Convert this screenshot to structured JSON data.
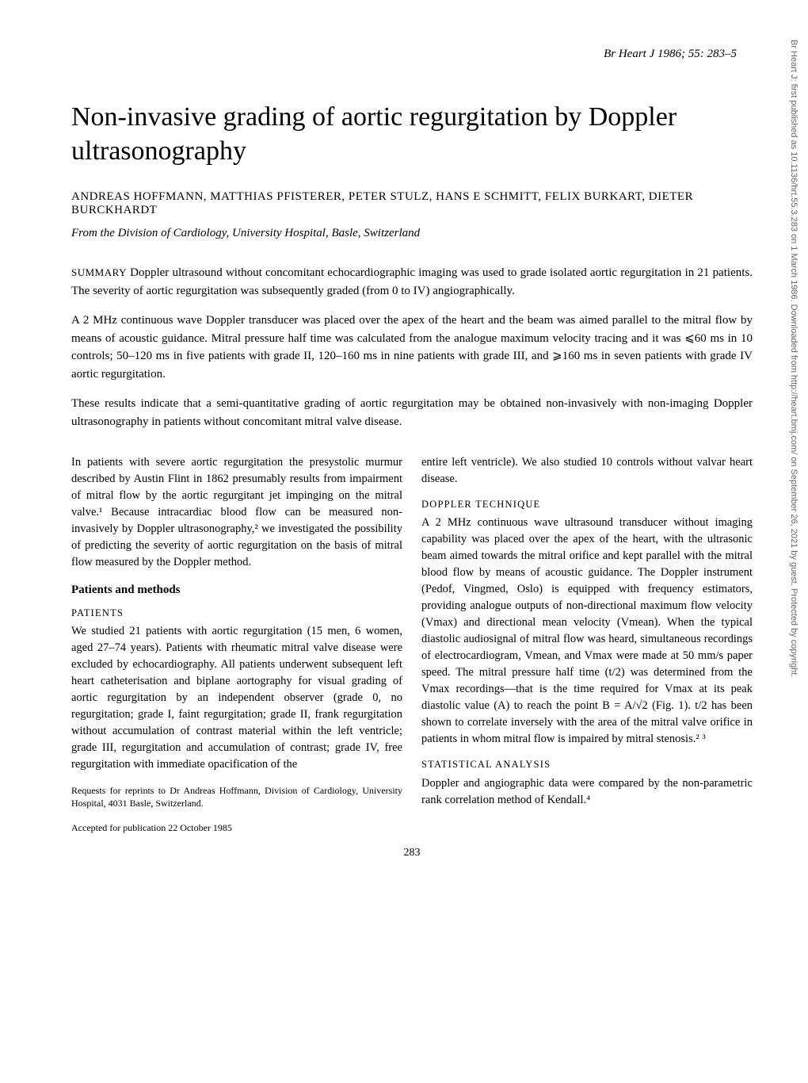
{
  "journal_ref": "Br Heart J 1986; 55: 283–5",
  "title": "Non-invasive grading of aortic regurgitation by Doppler ultrasonography",
  "authors": "ANDREAS HOFFMANN, MATTHIAS PFISTERER, PETER STULZ, HANS E SCHMITT, FELIX BURKART, DIETER BURCKHARDT",
  "affiliation": "From the Division of Cardiology, University Hospital, Basle, Switzerland",
  "summary_label": "SUMMARY",
  "summary_p1": "Doppler ultrasound without concomitant echocardiographic imaging was used to grade isolated aortic regurgitation in 21 patients. The severity of aortic regurgitation was subsequently graded (from 0 to IV) angiographically.",
  "summary_p2": "A 2 MHz continuous wave Doppler transducer was placed over the apex of the heart and the beam was aimed parallel to the mitral flow by means of acoustic guidance. Mitral pressure half time was calculated from the analogue maximum velocity tracing and it was ⩽60 ms in 10 controls; 50–120 ms in five patients with grade II, 120–160 ms in nine patients with grade III, and ⩾160 ms in seven patients with grade IV aortic regurgitation.",
  "summary_p3": "These results indicate that a semi-quantitative grading of aortic regurgitation may be obtained non-invasively with non-imaging Doppler ultrasonography in patients without concomitant mitral valve disease.",
  "intro": "In patients with severe aortic regurgitation the presystolic murmur described by Austin Flint in 1862 presumably results from impairment of mitral flow by the aortic regurgitant jet impinging on the mitral valve.¹ Because intracardiac blood flow can be measured non-invasively by Doppler ultrasonography,² we investigated the possibility of predicting the severity of aortic regurgitation on the basis of mitral flow measured by the Doppler method.",
  "heading_methods": "Patients and methods",
  "sub_patients": "PATIENTS",
  "patients_text": "We studied 21 patients with aortic regurgitation (15 men, 6 women, aged 27–74 years). Patients with rheumatic mitral valve disease were excluded by echocardiography. All patients underwent subsequent left heart catheterisation and biplane aortography for visual grading of aortic regurgitation by an independent observer (grade 0, no regurgitation; grade I, faint regurgitation; grade II, frank regurgitation without accumulation of contrast material within the left ventricle; grade III, regurgitation and accumulation of contrast; grade IV, free regurgitation with immediate opacification of the",
  "reprints": "Requests for reprints to Dr Andreas Hoffmann, Division of Cardiology, University Hospital, 4031 Basle, Switzerland.",
  "accepted": "Accepted for publication 22 October 1985",
  "col2_top": "entire left ventricle). We also studied 10 controls without valvar heart disease.",
  "sub_doppler": "DOPPLER TECHNIQUE",
  "doppler_text": "A 2 MHz continuous wave ultrasound transducer without imaging capability was placed over the apex of the heart, with the ultrasonic beam aimed towards the mitral orifice and kept parallel with the mitral blood flow by means of acoustic guidance. The Doppler instrument (Pedof, Vingmed, Oslo) is equipped with frequency estimators, providing analogue outputs of non-directional maximum flow velocity (Vmax) and directional mean velocity (Vmean). When the typical diastolic audiosignal of mitral flow was heard, simultaneous recordings of electrocardiogram, Vmean, and Vmax were made at 50 mm/s paper speed. The mitral pressure half time (t/2) was determined from the Vmax recordings—that is the time required for Vmax at its peak diastolic value (A) to reach the point B = A/√2 (Fig. 1). t/2 has been shown to correlate inversely with the area of the mitral valve orifice in patients in whom mitral flow is impaired by mitral stenosis.² ³",
  "sub_stats": "STATISTICAL ANALYSIS",
  "stats_text": "Doppler and angiographic data were compared by the non-parametric rank correlation method of Kendall.⁴",
  "page_num": "283",
  "watermark": "Br Heart J: first published as 10.1136/hrt.55.3.283 on 1 March 1986. Downloaded from http://heart.bmj.com/ on September 26, 2021 by guest. Protected by copyright."
}
